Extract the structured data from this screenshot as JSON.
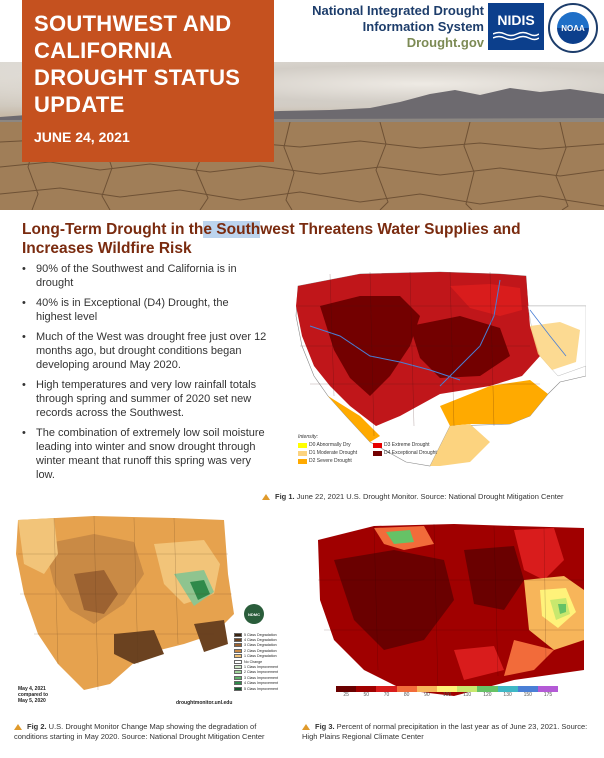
{
  "header": {
    "title": "SOUTHWEST AND CALIFORNIA DROUGHT STATUS UPDATE",
    "date": "JUNE 24, 2021",
    "org_line1": "National Integrated Drought",
    "org_line2": "Information System",
    "org_site": "Drought.gov",
    "nidis_logo": "NIDIS",
    "noaa_logo": "NOAA"
  },
  "headline": {
    "part1": "Long-Term Drought in th",
    "highlight": "e South",
    "part2": "west Threatens Water Supplies and Increases Wildfire Risk"
  },
  "bullets": [
    "90% of the Southwest and California is in drought",
    "40% is in Exceptional (D4) Drought, the highest level",
    "Much of the West was drought free just over 12 months ago, but drought conditions began developing around May 2020.",
    "High temperatures and very low rainfall totals through spring and summer of 2020 set new records across the Southwest.",
    "The combination of extremely low soil moisture leading into winter and snow drought through winter meant that runoff this spring was very low."
  ],
  "fig1": {
    "legend_title": "Intensity:",
    "legend": [
      {
        "label": "D0 Abnormally Dry",
        "color": "#ffff00"
      },
      {
        "label": "D3 Extreme Drought",
        "color": "#e60000"
      },
      {
        "label": "D1 Moderate Drought",
        "color": "#fcd37f"
      },
      {
        "label": "D4 Exceptional Drought",
        "color": "#730000"
      },
      {
        "label": "D2 Severe Drought",
        "color": "#ffaa00"
      }
    ],
    "caption_label": "Fig 1.",
    "caption_text": " June 22, 2021 U.S. Drought Monitor. Source: National Drought Mitigation Center"
  },
  "fig2": {
    "date_line1": "May 4, 2021",
    "date_line2": "compared to",
    "date_line3": "May 5, 2020",
    "site": "droughtmonitor.unl.edu",
    "badge": "NDMC",
    "legend": [
      {
        "label": "5 Class Degradation",
        "color": "#3a2410"
      },
      {
        "label": "4 Class Degradation",
        "color": "#6b4220"
      },
      {
        "label": "3 Class Degradation",
        "color": "#9c6231"
      },
      {
        "label": "2 Class Degradation",
        "color": "#c98a45"
      },
      {
        "label": "1 Class Degradation",
        "color": "#f2c479"
      },
      {
        "label": "No Change",
        "color": "#ffffff"
      },
      {
        "label": "1 Class Improvement",
        "color": "#cfe8c8"
      },
      {
        "label": "2 Class Improvement",
        "color": "#9fd39a"
      },
      {
        "label": "3 Class Improvement",
        "color": "#5fb36a"
      },
      {
        "label": "4 Class Improvement",
        "color": "#2f8a4a"
      },
      {
        "label": "5 Class Improvement",
        "color": "#145a2c"
      }
    ],
    "caption_label": "Fig 2.",
    "caption_text": " U.S. Drought Monitor Change Map showing the degradation of conditions starting in May 2020. Source: National Drought Mitigation Center"
  },
  "fig3": {
    "scale": [
      {
        "label": "25",
        "color": "#6a0000"
      },
      {
        "label": "50",
        "color": "#a00000"
      },
      {
        "label": "70",
        "color": "#d91c1c"
      },
      {
        "label": "80",
        "color": "#f26b3a"
      },
      {
        "label": "90",
        "color": "#f7b55a"
      },
      {
        "label": "100",
        "color": "#fff27a"
      },
      {
        "label": "110",
        "color": "#c8e86e"
      },
      {
        "label": "120",
        "color": "#66c266"
      },
      {
        "label": "130",
        "color": "#3fb8c6"
      },
      {
        "label": "150",
        "color": "#4a7fd6"
      },
      {
        "label": "175",
        "color": "#b45ad6"
      }
    ],
    "caption_label": "Fig 3.",
    "caption_text": "  Percent of normal precipitation in the last year as of June 23, 2021. Source: High Plains Regional Climate Center"
  }
}
